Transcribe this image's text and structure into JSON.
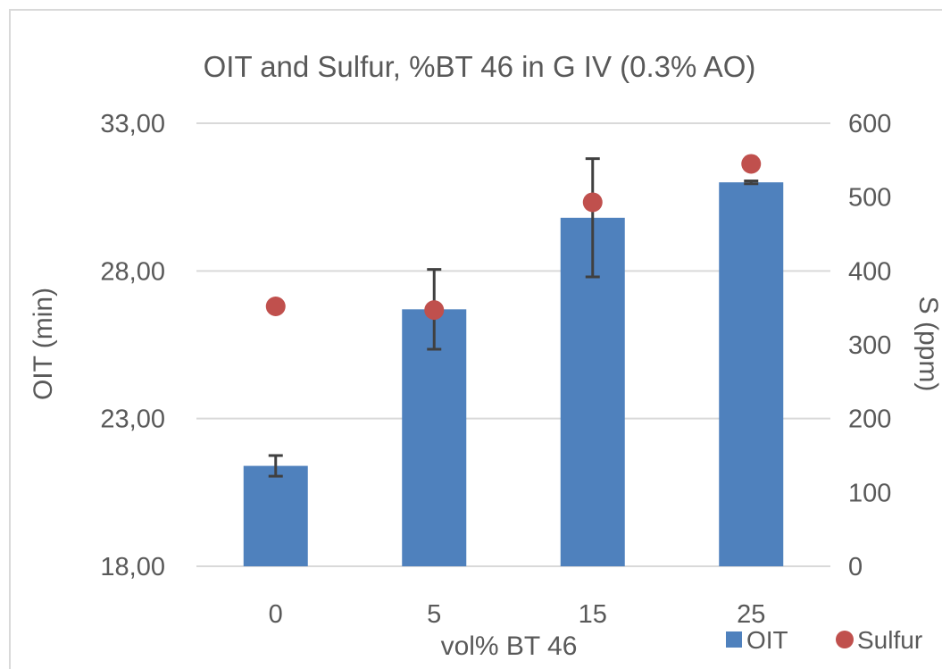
{
  "chart_data": {
    "type": "bar",
    "title": "OIT and Sulfur, %BT 46 in G IV (0.3% AO)",
    "xlabel": "vol% BT 46",
    "ylabel": "OIT (min)",
    "y2label": "S (ppm)",
    "categories": [
      "0",
      "5",
      "15",
      "25"
    ],
    "ylim": [
      18,
      33
    ],
    "y_ticks": [
      "18,00",
      "23,00",
      "28,00",
      "33,00"
    ],
    "y2lim": [
      0,
      600
    ],
    "y2_ticks": [
      "0",
      "100",
      "200",
      "300",
      "400",
      "500",
      "600"
    ],
    "grid": true,
    "legend_position": "bottom-right",
    "series": [
      {
        "name": "OIT",
        "kind": "bar",
        "axis": "left",
        "color": "#4f81bd",
        "values": [
          21.4,
          26.7,
          29.8,
          31.0
        ],
        "error": [
          0.35,
          1.35,
          2.0,
          0.05
        ]
      },
      {
        "name": "Sulfur",
        "kind": "scatter",
        "axis": "right",
        "color": "#c0504d",
        "values": [
          352,
          347,
          493,
          545
        ]
      }
    ]
  }
}
